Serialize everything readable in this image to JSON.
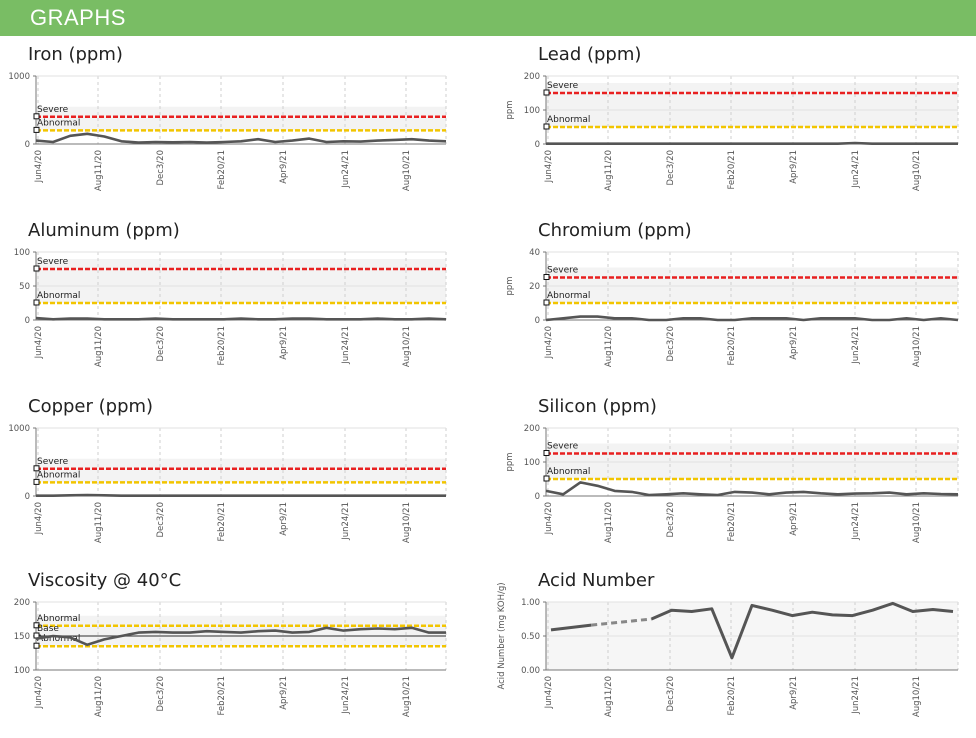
{
  "header": {
    "title": "GRAPHS"
  },
  "x_ticks": [
    "Jun4/20",
    "Aug11/20",
    "Dec3/20",
    "Feb20/21",
    "Apr9/21",
    "Jun24/21",
    "Aug10/21"
  ],
  "colors": {
    "severe": "#e82020",
    "abnormal": "#f2c500",
    "base": "#555555",
    "series": "#555555",
    "header": "#79bd64"
  },
  "chart_data": [
    {
      "type": "line",
      "title": "Iron (ppm)",
      "ylabel": "",
      "ylim": [
        0,
        1000
      ],
      "yticks": [
        "1000",
        "0"
      ],
      "limits": [
        {
          "label": "Severe",
          "value": 400,
          "kind": "severe"
        },
        {
          "label": "Abnormal",
          "value": 200,
          "kind": "abnormal"
        }
      ],
      "values": [
        50,
        30,
        120,
        150,
        110,
        40,
        20,
        30,
        25,
        30,
        20,
        30,
        40,
        70,
        30,
        50,
        80,
        30,
        40,
        35,
        50,
        60,
        70,
        50,
        40
      ]
    },
    {
      "type": "line",
      "title": "Lead (ppm)",
      "ylabel": "ppm",
      "ylim": [
        0,
        200
      ],
      "yticks": [
        "200",
        "100",
        "0"
      ],
      "limits": [
        {
          "label": "Severe",
          "value": 150,
          "kind": "severe"
        },
        {
          "label": "Abnormal",
          "value": 50,
          "kind": "abnormal"
        }
      ],
      "values": [
        1,
        1,
        1,
        1,
        1,
        1,
        1,
        1,
        1,
        1,
        1,
        1,
        1,
        1,
        1,
        1,
        1,
        1,
        3,
        1,
        1,
        1,
        1,
        1,
        1
      ]
    },
    {
      "type": "line",
      "title": "Aluminum (ppm)",
      "ylabel": "",
      "ylim": [
        0,
        100
      ],
      "yticks": [
        "100",
        "50",
        "0"
      ],
      "limits": [
        {
          "label": "Severe",
          "value": 75,
          "kind": "severe"
        },
        {
          "label": "Abnormal",
          "value": 25,
          "kind": "abnormal"
        }
      ],
      "values": [
        3,
        1,
        2,
        2,
        1,
        1,
        1,
        2,
        1,
        1,
        1,
        1,
        2,
        1,
        1,
        2,
        2,
        1,
        1,
        1,
        2,
        1,
        1,
        2,
        1
      ]
    },
    {
      "type": "line",
      "title": "Chromium (ppm)",
      "ylabel": "ppm",
      "ylim": [
        0,
        40
      ],
      "yticks": [
        "40",
        "20",
        "0"
      ],
      "limits": [
        {
          "label": "Severe",
          "value": 25,
          "kind": "severe"
        },
        {
          "label": "Abnormal",
          "value": 10,
          "kind": "abnormal"
        }
      ],
      "values": [
        0,
        1,
        2,
        2,
        1,
        1,
        0,
        0,
        1,
        1,
        0,
        0,
        1,
        1,
        1,
        0,
        1,
        1,
        1,
        0,
        0,
        1,
        0,
        1,
        0
      ]
    },
    {
      "type": "line",
      "title": "Copper (ppm)",
      "ylabel": "",
      "ylim": [
        0,
        1000
      ],
      "yticks": [
        "1000",
        "0"
      ],
      "limits": [
        {
          "label": "Severe",
          "value": 400,
          "kind": "severe"
        },
        {
          "label": "Abnormal",
          "value": 200,
          "kind": "abnormal"
        }
      ],
      "values": [
        5,
        5,
        10,
        15,
        10,
        5,
        5,
        5,
        5,
        5,
        5,
        5,
        5,
        5,
        5,
        5,
        5,
        5,
        5,
        5,
        5,
        5,
        5,
        5,
        5
      ]
    },
    {
      "type": "line",
      "title": "Silicon (ppm)",
      "ylabel": "ppm",
      "ylim": [
        0,
        200
      ],
      "yticks": [
        "200",
        "100",
        "0"
      ],
      "limits": [
        {
          "label": "Severe",
          "value": 125,
          "kind": "severe"
        },
        {
          "label": "Abnormal",
          "value": 50,
          "kind": "abnormal"
        }
      ],
      "values": [
        15,
        5,
        40,
        30,
        15,
        12,
        3,
        5,
        8,
        5,
        3,
        12,
        10,
        5,
        10,
        12,
        8,
        5,
        7,
        8,
        10,
        5,
        8,
        6,
        5
      ]
    },
    {
      "type": "line",
      "title": "Viscosity @ 40°C",
      "ylabel": "",
      "ylim": [
        100,
        200
      ],
      "yticks": [
        "200",
        "150",
        "100"
      ],
      "limits": [
        {
          "label": "Abnormal",
          "value": 165,
          "kind": "abnormal"
        },
        {
          "label": "Base",
          "value": 150,
          "kind": "base"
        },
        {
          "label": "Abnormal",
          "value": 135,
          "kind": "abnormal"
        }
      ],
      "values": [
        146,
        150,
        148,
        137,
        145,
        150,
        155,
        156,
        155,
        155,
        157,
        156,
        155,
        157,
        158,
        155,
        156,
        162,
        158,
        160,
        161,
        160,
        162,
        155,
        155
      ]
    },
    {
      "type": "line",
      "title": "Acid Number",
      "ylabel": "Acid Number (mg KOH/g)",
      "ylim": [
        0,
        1
      ],
      "yticks": [
        "1.00",
        "0.50",
        "0.00"
      ],
      "limits": [],
      "solid_segments": [
        [
          [
            0,
            0.59
          ],
          [
            2,
            0.66
          ]
        ],
        [
          [
            5,
            0.75
          ],
          [
            6,
            0.88
          ],
          [
            7,
            0.86
          ],
          [
            8,
            0.9
          ],
          [
            9,
            0.18
          ],
          [
            10,
            0.95
          ],
          [
            11,
            0.88
          ],
          [
            12,
            0.8
          ],
          [
            13,
            0.85
          ],
          [
            14,
            0.81
          ],
          [
            15,
            0.8
          ],
          [
            16,
            0.88
          ],
          [
            17,
            0.98
          ],
          [
            18,
            0.86
          ],
          [
            19,
            0.89
          ],
          [
            20,
            0.86
          ]
        ]
      ],
      "dashed_segment": [
        [
          2,
          0.66
        ],
        [
          5,
          0.75
        ]
      ],
      "x_count": 21
    }
  ]
}
